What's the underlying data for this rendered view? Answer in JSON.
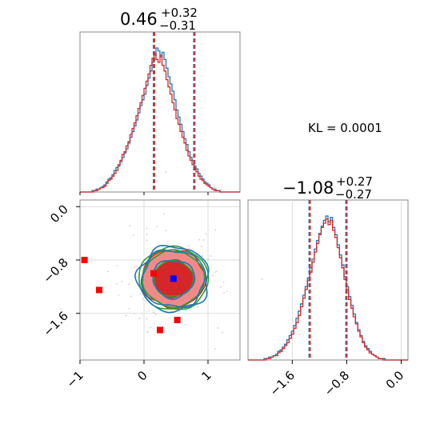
{
  "chart_data": {
    "type": "corner",
    "kl_label": "KL = 0.0001",
    "panels": [
      {
        "id": "hist_param1",
        "type": "histogram",
        "title": {
          "median": "0.46",
          "plus": "+0.32",
          "minus": "−0.31"
        },
        "xlim": [
          -1.0,
          1.5
        ],
        "quantile_lines": [
          0.15,
          0.46,
          0.78
        ],
        "series": [
          {
            "color": "#1f77b4",
            "bin_edges": [
              -1.0,
              1.5
            ],
            "counts": [
              0,
              0,
              0,
              0,
              0,
              0,
              1,
              1,
              2,
              2,
              3,
              4,
              5,
              7,
              9,
              10,
              12,
              15,
              17,
              18,
              21,
              24,
              27,
              30,
              34,
              38,
              42,
              46,
              50,
              55,
              60,
              64,
              68,
              74,
              79,
              84,
              90,
              95,
              100,
              98,
              94,
              97,
              92,
              86,
              80,
              75,
              70,
              64,
              57,
              52,
              47,
              42,
              37,
              33,
              28,
              24,
              22,
              18,
              16,
              13,
              11,
              9,
              7,
              6,
              5,
              3,
              2,
              2,
              1,
              1,
              0,
              0,
              0,
              0,
              0,
              0,
              0,
              0,
              0,
              0
            ]
          },
          {
            "color": "#d62728",
            "bin_edges": [
              -1.0,
              1.5
            ],
            "counts": [
              0,
              0,
              0,
              0,
              0,
              0,
              0,
              1,
              1,
              2,
              3,
              3,
              4,
              6,
              8,
              9,
              11,
              13,
              15,
              19,
              22,
              26,
              28,
              32,
              35,
              40,
              44,
              48,
              53,
              58,
              62,
              67,
              72,
              77,
              82,
              88,
              93,
              96,
              92,
              90,
              95,
              88,
              84,
              78,
              73,
              68,
              62,
              57,
              51,
              47,
              42,
              38,
              34,
              29,
              25,
              22,
              19,
              16,
              14,
              11,
              9,
              8,
              6,
              5,
              4,
              3,
              2,
              1,
              1,
              1,
              0,
              0,
              0,
              0,
              0,
              0,
              0,
              0,
              0,
              0
            ]
          }
        ]
      },
      {
        "id": "hist_param2",
        "type": "histogram",
        "title": {
          "median": "−1.08",
          "plus": "+0.27",
          "minus": "−0.27"
        },
        "xlim": [
          -2.25,
          0.1
        ],
        "xticks": [
          "−1.6",
          "−0.8",
          "0.0"
        ],
        "xtick_values": [
          -1.6,
          -0.8,
          0.0
        ],
        "quantile_lines": [
          -1.35,
          -1.08,
          -0.81
        ],
        "series": [
          {
            "color": "#1f77b4",
            "bin_edges": [
              -2.25,
              0.1
            ],
            "counts": [
              0,
              0,
              0,
              0,
              0,
              0,
              0,
              1,
              1,
              2,
              2,
              3,
              4,
              6,
              7,
              9,
              11,
              14,
              17,
              20,
              24,
              29,
              34,
              39,
              45,
              51,
              57,
              64,
              70,
              77,
              83,
              88,
              93,
              97,
              100,
              96,
              99,
              92,
              87,
              80,
              73,
              66,
              58,
              51,
              44,
              38,
              32,
              26,
              21,
              17,
              13,
              10,
              8,
              6,
              4,
              3,
              2,
              1,
              1,
              1,
              0,
              0,
              0,
              0,
              0,
              0,
              0,
              0,
              0,
              0
            ]
          },
          {
            "color": "#d62728",
            "bin_edges": [
              -2.25,
              0.1
            ],
            "counts": [
              0,
              0,
              0,
              0,
              0,
              0,
              0,
              0,
              1,
              1,
              2,
              3,
              3,
              5,
              6,
              8,
              10,
              12,
              15,
              18,
              22,
              26,
              31,
              37,
              43,
              49,
              55,
              61,
              68,
              75,
              81,
              87,
              92,
              95,
              98,
              94,
              97,
              90,
              85,
              78,
              71,
              64,
              56,
              49,
              42,
              36,
              30,
              25,
              20,
              16,
              12,
              9,
              7,
              5,
              4,
              3,
              2,
              1,
              1,
              0,
              0,
              0,
              0,
              0,
              0,
              0,
              0,
              0,
              0,
              0
            ]
          }
        ]
      },
      {
        "id": "scatter_2d",
        "type": "contour",
        "xlim": [
          -1.0,
          1.5
        ],
        "ylim": [
          -2.3,
          0.1
        ],
        "xticks": [
          "−1",
          "0",
          "1"
        ],
        "xtick_values": [
          -1,
          0,
          1
        ],
        "yticks": [
          "0.0",
          "−0.8",
          "−1.6"
        ],
        "ytick_values": [
          0.0,
          -0.8,
          -1.6
        ],
        "contour_center": [
          0.46,
          -1.08
        ],
        "contour_sigma": [
          0.31,
          0.27
        ],
        "filled_levels": [
          {
            "k": 1.0,
            "color": "#d62728"
          },
          {
            "k": 1.6,
            "color": "#f08a8a"
          }
        ],
        "line_levels": [
          {
            "color": "#2ca02c",
            "k": [
              1.0,
              1.55,
              1.75
            ]
          },
          {
            "color": "#1f77b4",
            "k": [
              1.05,
              1.6,
              1.8
            ]
          }
        ],
        "red_markers": [
          [
            -0.93,
            -0.8
          ],
          [
            -0.7,
            -1.25
          ],
          [
            0.25,
            -1.85
          ],
          [
            0.52,
            -1.7
          ],
          [
            0.15,
            -1.0
          ]
        ],
        "blue_markers": [
          [
            0.46,
            -1.08
          ]
        ]
      }
    ]
  }
}
